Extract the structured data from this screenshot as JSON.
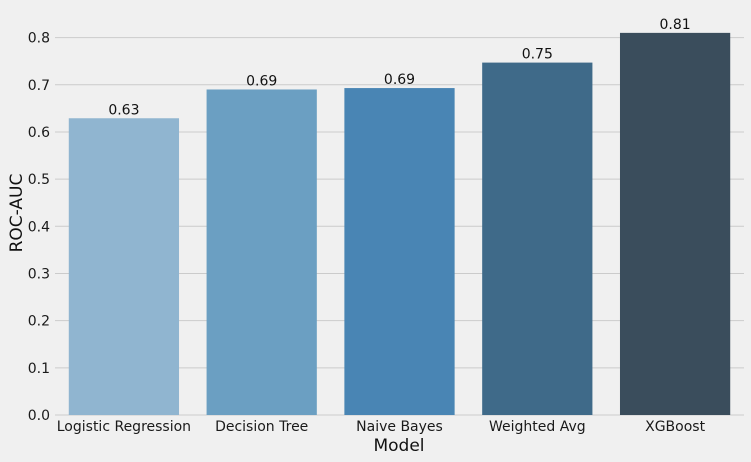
{
  "chart_data": {
    "type": "bar",
    "title": "",
    "xlabel": "Model",
    "ylabel": "ROC-AUC",
    "categories": [
      "Logistic Regression",
      "Decision Tree",
      "Naive Bayes",
      "Weighted Avg",
      "XGBoost"
    ],
    "values": [
      0.629,
      0.69,
      0.693,
      0.747,
      0.81
    ],
    "data_labels": [
      "0.63",
      "0.69",
      "0.69",
      "0.75",
      "0.81"
    ],
    "colors": [
      "#90b5d0",
      "#6b9fc2",
      "#4985b4",
      "#3f6a89",
      "#3a4d5c"
    ],
    "ylim": [
      0,
      0.85
    ],
    "yticks": [
      0.0,
      0.1,
      0.2,
      0.3,
      0.4,
      0.5,
      0.6,
      0.7,
      0.8
    ],
    "ytick_labels": [
      "0.0",
      "0.1",
      "0.2",
      "0.3",
      "0.4",
      "0.5",
      "0.6",
      "0.7",
      "0.8"
    ],
    "grid": "horizontal",
    "legend": "none"
  }
}
